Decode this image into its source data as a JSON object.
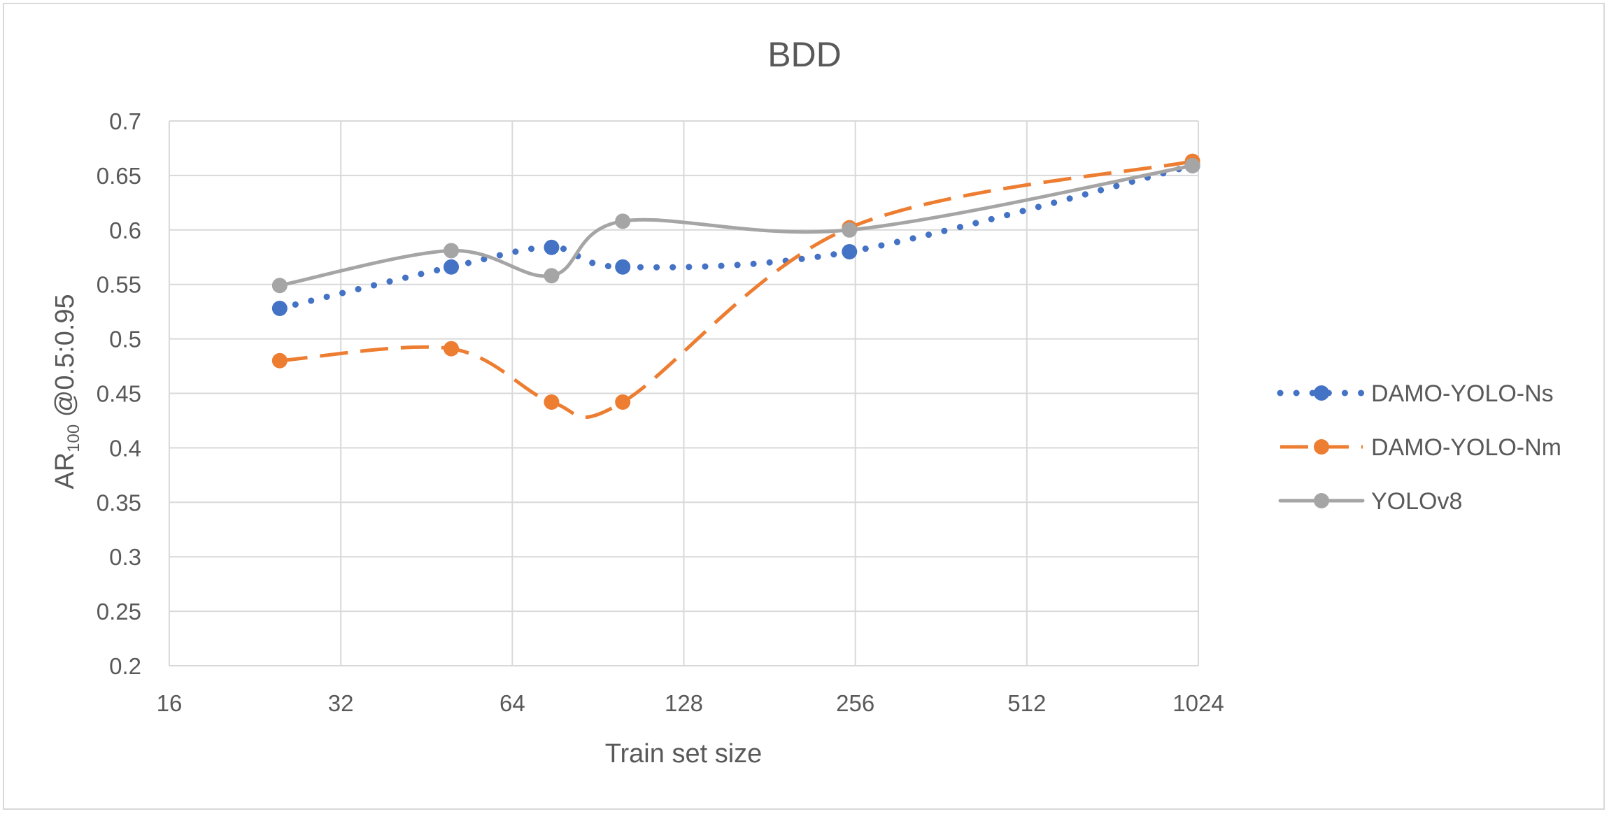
{
  "chart_data": {
    "type": "line",
    "title": "BDD",
    "xlabel": "Train set size",
    "ylabel_main": "AR",
    "ylabel_sub": "100",
    "ylabel_rest": " @0.5:0.95",
    "x_scale": "log2",
    "x_ticks": [
      16,
      32,
      64,
      128,
      256,
      512,
      1024
    ],
    "x_tick_labels": [
      "16",
      "32",
      "64",
      "128",
      "256",
      "512",
      "1024"
    ],
    "ylim": [
      0.2,
      0.7
    ],
    "y_ticks": [
      0.2,
      0.25,
      0.3,
      0.35,
      0.4,
      0.45,
      0.5,
      0.55,
      0.6,
      0.65,
      0.7
    ],
    "y_tick_labels": [
      "0.2",
      "0.25",
      "0.3",
      "0.35",
      "0.4",
      "0.45",
      "0.5",
      "0.55",
      "0.6",
      "0.65",
      "0.7"
    ],
    "grid": true,
    "legend_position": "right",
    "series": [
      {
        "name": "DAMO-YOLO-Ns",
        "color": "#4472C4",
        "line_style": "dotted",
        "x": [
          25,
          50,
          75,
          100,
          250,
          1000
        ],
        "y": [
          0.528,
          0.566,
          0.584,
          0.566,
          0.58,
          0.659
        ]
      },
      {
        "name": "DAMO-YOLO-Nm",
        "color": "#ED7D31",
        "line_style": "dashed",
        "x": [
          25,
          50,
          75,
          100,
          250,
          1000
        ],
        "y": [
          0.48,
          0.491,
          0.442,
          0.442,
          0.602,
          0.663
        ]
      },
      {
        "name": "YOLOv8",
        "color": "#A5A5A5",
        "line_style": "solid",
        "x": [
          25,
          50,
          75,
          100,
          250,
          1000
        ],
        "y": [
          0.549,
          0.581,
          0.558,
          0.608,
          0.6,
          0.659
        ]
      }
    ]
  }
}
